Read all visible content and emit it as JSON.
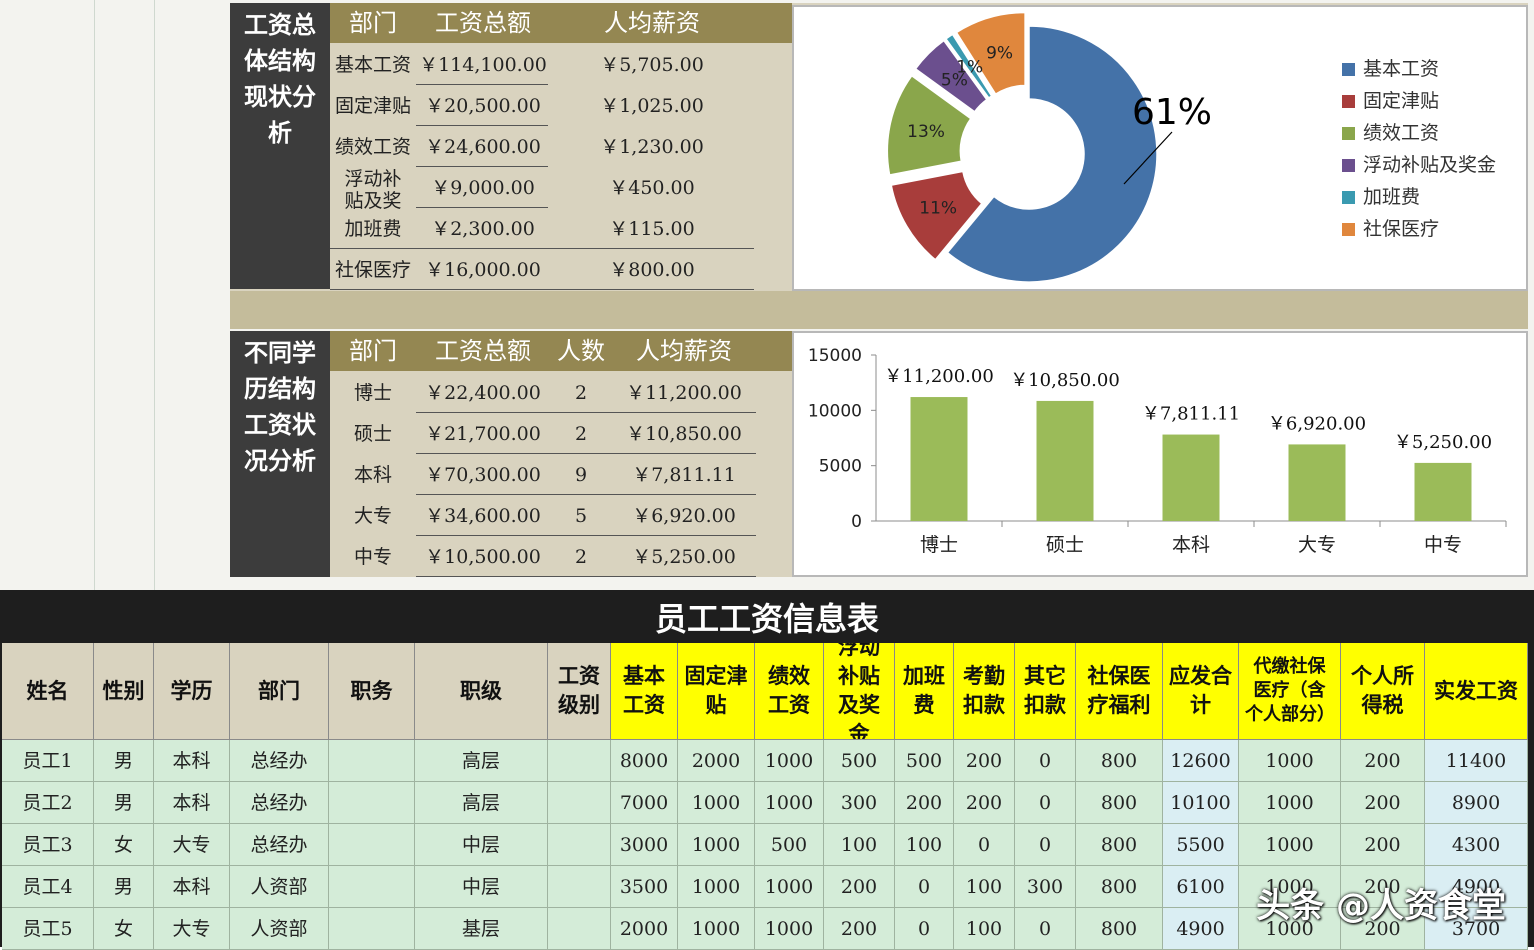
{
  "structure_section": {
    "side_label": [
      "工资总",
      "体结构",
      "现状分",
      "析"
    ],
    "headers": {
      "dept": "部门",
      "total": "工资总额",
      "avg": "人均薪资"
    },
    "rows": [
      {
        "dept": "基本工资",
        "total": "￥114,100.00",
        "avg": "￥5,705.00"
      },
      {
        "dept": "固定津贴",
        "total": "￥20,500.00",
        "avg": "￥1,025.00"
      },
      {
        "dept": "绩效工资",
        "total": "￥24,600.00",
        "avg": "￥1,230.00"
      },
      {
        "dept": "浮动补贴及奖",
        "total": "￥9,000.00",
        "avg": "￥450.00"
      },
      {
        "dept": "加班费",
        "total": "￥2,300.00",
        "avg": "￥115.00"
      },
      {
        "dept": "社保医疗",
        "total": "￥16,000.00",
        "avg": "￥800.00"
      }
    ]
  },
  "education_section": {
    "side_label": [
      "不同学",
      "历结构",
      "工资状",
      "况分析"
    ],
    "headers": {
      "dept": "部门",
      "total": "工资总额",
      "count": "人数",
      "avg": "人均薪资"
    },
    "rows": [
      {
        "dept": "博士",
        "total": "￥22,400.00",
        "count": "2",
        "avg": "￥11,200.00"
      },
      {
        "dept": "硕士",
        "total": "￥21,700.00",
        "count": "2",
        "avg": "￥10,850.00"
      },
      {
        "dept": "本科",
        "total": "￥70,300.00",
        "count": "9",
        "avg": "￥7,811.11"
      },
      {
        "dept": "大专",
        "total": "￥34,600.00",
        "count": "5",
        "avg": "￥6,920.00"
      },
      {
        "dept": "中专",
        "total": "￥10,500.00",
        "count": "2",
        "avg": "￥5,250.00"
      }
    ]
  },
  "chart_data": [
    {
      "type": "pie",
      "categories": [
        "基本工资",
        "固定津贴",
        "绩效工资",
        "浮动补贴及奖金",
        "加班费",
        "社保医疗"
      ],
      "values": [
        61,
        11,
        13,
        5,
        1,
        9
      ],
      "labels": [
        "61%",
        "11%",
        "13%",
        "5%",
        "1%",
        "9%"
      ],
      "colors": [
        "#4472a8",
        "#a83d3b",
        "#8aa64b",
        "#6b4f8e",
        "#3a9ab0",
        "#e0873d"
      ],
      "legend_position": "right"
    },
    {
      "type": "bar",
      "categories": [
        "博士",
        "硕士",
        "本科",
        "大专",
        "中专"
      ],
      "values": [
        11200,
        10850,
        7811.11,
        6920,
        5250
      ],
      "labels": [
        "￥11,200.00",
        "￥10,850.00",
        "￥7,811.11",
        "￥6,920.00",
        "￥5,250.00"
      ],
      "ylim": [
        0,
        15000
      ],
      "yticks": [
        "15000",
        "10000",
        "5000",
        "0"
      ],
      "color": "#9bbb59",
      "grid": false
    }
  ],
  "employee_table": {
    "title": "员工工资信息表",
    "headers": [
      "姓名",
      "性别",
      "学历",
      "部门",
      "职务",
      "职级",
      "工资级别",
      "基本工资",
      "固定津贴",
      "绩效工资",
      "浮动补贴及奖金",
      "加班费",
      "考勤扣款",
      "其它扣款",
      "社保医疗福利",
      "应发合计",
      "代缴社保医疗（含个人部分）",
      "个人所得税",
      "实发工资"
    ],
    "rows": [
      [
        "员工1",
        "男",
        "本科",
        "总经办",
        "",
        "高层",
        "",
        "8000",
        "2000",
        "1000",
        "500",
        "500",
        "200",
        "0",
        "800",
        "12600",
        "1000",
        "200",
        "11400"
      ],
      [
        "员工2",
        "男",
        "本科",
        "总经办",
        "",
        "高层",
        "",
        "7000",
        "1000",
        "1000",
        "300",
        "200",
        "200",
        "0",
        "800",
        "10100",
        "1000",
        "200",
        "8900"
      ],
      [
        "员工3",
        "女",
        "大专",
        "总经办",
        "",
        "中层",
        "",
        "3000",
        "1000",
        "500",
        "100",
        "100",
        "0",
        "0",
        "800",
        "5500",
        "1000",
        "200",
        "4300"
      ],
      [
        "员工4",
        "男",
        "本科",
        "人资部",
        "",
        "中层",
        "",
        "3500",
        "1000",
        "1000",
        "200",
        "0",
        "100",
        "300",
        "800",
        "6100",
        "1000",
        "200",
        "4900"
      ],
      [
        "员工5",
        "女",
        "大专",
        "人资部",
        "",
        "基层",
        "",
        "2000",
        "1000",
        "1000",
        "200",
        "0",
        "100",
        "0",
        "800",
        "4900",
        "1000",
        "200",
        "3700"
      ]
    ]
  },
  "watermark": "头条 @人资食堂"
}
